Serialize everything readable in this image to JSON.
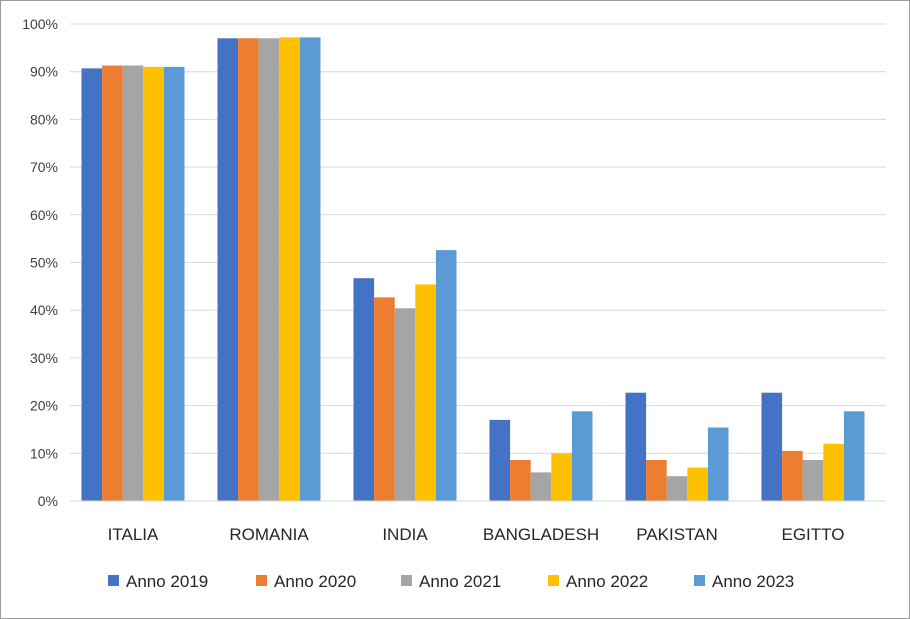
{
  "chart_data": {
    "type": "bar",
    "title": "",
    "xlabel": "",
    "ylabel": "",
    "ylim": [
      0,
      100
    ],
    "y_ticks": [
      "0%",
      "10%",
      "20%",
      "30%",
      "40%",
      "50%",
      "60%",
      "70%",
      "80%",
      "90%",
      "100%"
    ],
    "grid": true,
    "legend_position": "bottom",
    "categories": [
      "ITALIA",
      "ROMANIA",
      "INDIA",
      "BANGLADESH",
      "PAKISTAN",
      "EGITTO"
    ],
    "series": [
      {
        "name": "Anno 2019",
        "color": "#4472C4",
        "values": [
          90.7,
          97.0,
          46.7,
          17.0,
          22.7,
          22.7
        ]
      },
      {
        "name": "Anno 2020",
        "color": "#ED7D31",
        "values": [
          91.3,
          97.0,
          42.7,
          8.6,
          8.6,
          10.5
        ]
      },
      {
        "name": "Anno 2021",
        "color": "#A5A5A5",
        "values": [
          91.3,
          97.0,
          40.4,
          6.0,
          5.2,
          8.6
        ]
      },
      {
        "name": "Anno 2022",
        "color": "#FFC000",
        "values": [
          91.0,
          97.2,
          45.4,
          10.0,
          7.0,
          12.0
        ]
      },
      {
        "name": "Anno 2023",
        "color": "#5B9BD5",
        "values": [
          91.0,
          97.2,
          52.6,
          18.8,
          15.4,
          18.8
        ]
      }
    ]
  }
}
